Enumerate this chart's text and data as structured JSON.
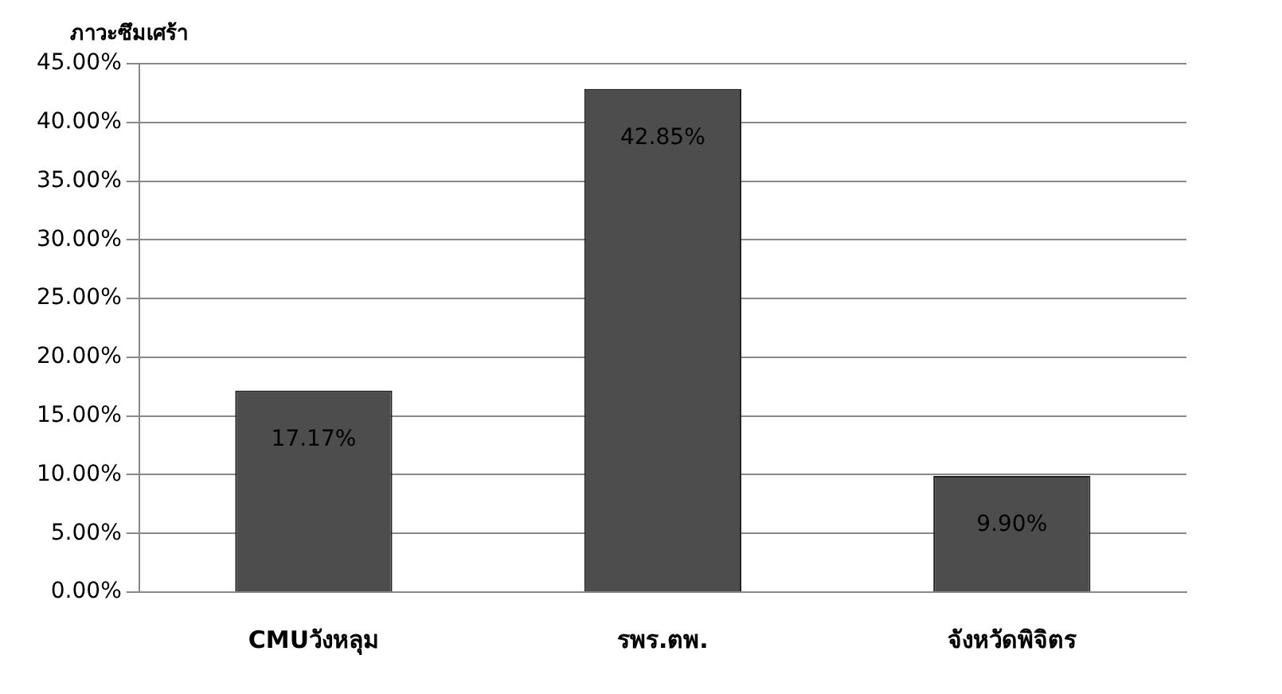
{
  "chart_data": {
    "type": "bar",
    "title": "ภาวะซึมเศร้า",
    "categories": [
      "CMUวังหลุม",
      "รพร.ตพ.",
      "จังหวัดพิจิตร"
    ],
    "values": [
      17.17,
      42.85,
      9.9
    ],
    "color": "#4d4d4d",
    "value_labels": [
      "17.17%",
      "42.85%",
      "9.90%"
    ],
    "ylim": [
      0,
      45
    ],
    "yticks": [
      {
        "value": 0,
        "label": "0.00%"
      },
      {
        "value": 5,
        "label": "5.00%"
      },
      {
        "value": 10,
        "label": "10.00%"
      },
      {
        "value": 15,
        "label": "15.00%"
      },
      {
        "value": 20,
        "label": "20.00%"
      },
      {
        "value": 25,
        "label": "25.00%"
      },
      {
        "value": 30,
        "label": "30.00%"
      },
      {
        "value": 35,
        "label": "35.00%"
      },
      {
        "value": 40,
        "label": "40.00%"
      },
      {
        "value": 45,
        "label": "45.00%"
      }
    ],
    "grid": "y",
    "legend": false
  }
}
